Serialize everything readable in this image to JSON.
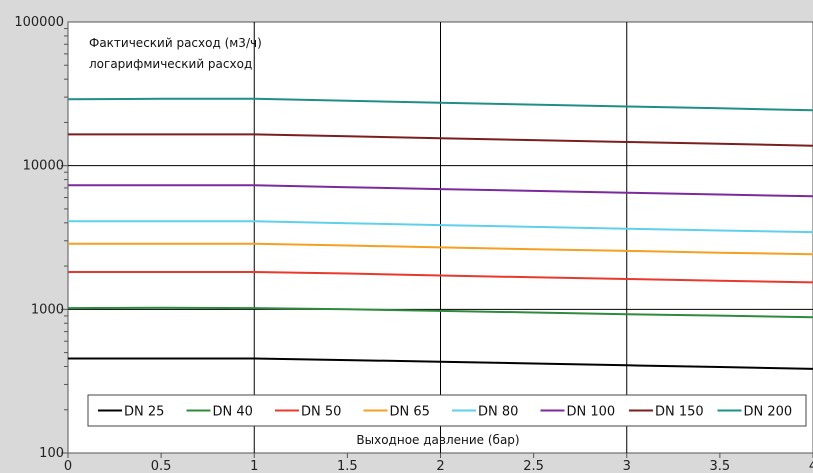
{
  "chart_data": {
    "type": "line",
    "title": "",
    "xlabel": "Выходное давление (бар)",
    "ylabel": "",
    "yscale": "log",
    "annotations": [
      "Фактический расход (м3/ч)",
      "логарифмический расход"
    ],
    "xlim": [
      0,
      4
    ],
    "ylim": [
      100,
      100000
    ],
    "x_ticks": [
      0,
      0.5,
      1,
      1.5,
      2,
      2.5,
      3,
      3.5,
      4
    ],
    "x_tick_labels": [
      "0",
      "0.5",
      "1",
      "1.5",
      "2",
      "2.5",
      "3",
      "3.5",
      "4"
    ],
    "y_ticks": [
      100,
      1000,
      10000,
      100000
    ],
    "y_tick_labels": [
      "100",
      "1000",
      "10000",
      "100000"
    ],
    "grid": true,
    "legend_position": "bottom",
    "x": [
      0,
      0.5,
      1,
      1.5,
      2,
      2.5,
      3,
      3.5,
      4
    ],
    "series": [
      {
        "name": "DN 25",
        "color": "#000000",
        "values": [
          455,
          455,
          455,
          443,
          432,
          420,
          408,
          397,
          385
        ]
      },
      {
        "name": "DN 40",
        "color": "#2e8b3e",
        "values": [
          1020,
          1025,
          1020,
          1000,
          975,
          950,
          925,
          905,
          880
        ]
      },
      {
        "name": "DN 50",
        "color": "#e8392c",
        "values": [
          1820,
          1820,
          1820,
          1775,
          1720,
          1670,
          1625,
          1580,
          1540
        ]
      },
      {
        "name": "DN 65",
        "color": "#f5a020",
        "values": [
          2860,
          2860,
          2860,
          2780,
          2700,
          2620,
          2550,
          2480,
          2420
        ]
      },
      {
        "name": "DN 80",
        "color": "#5fd0ea",
        "values": [
          4100,
          4100,
          4100,
          3980,
          3860,
          3750,
          3640,
          3540,
          3450
        ]
      },
      {
        "name": "DN 100",
        "color": "#7b2a9c",
        "values": [
          7300,
          7300,
          7300,
          7080,
          6870,
          6670,
          6480,
          6300,
          6120
        ]
      },
      {
        "name": "DN 150",
        "color": "#7a1f1f",
        "values": [
          16500,
          16500,
          16500,
          16000,
          15520,
          15060,
          14620,
          14190,
          13780
        ]
      },
      {
        "name": "DN 200",
        "color": "#1f8f85",
        "values": [
          29000,
          29200,
          29200,
          28300,
          27450,
          26620,
          25830,
          25060,
          24300
        ]
      }
    ]
  }
}
